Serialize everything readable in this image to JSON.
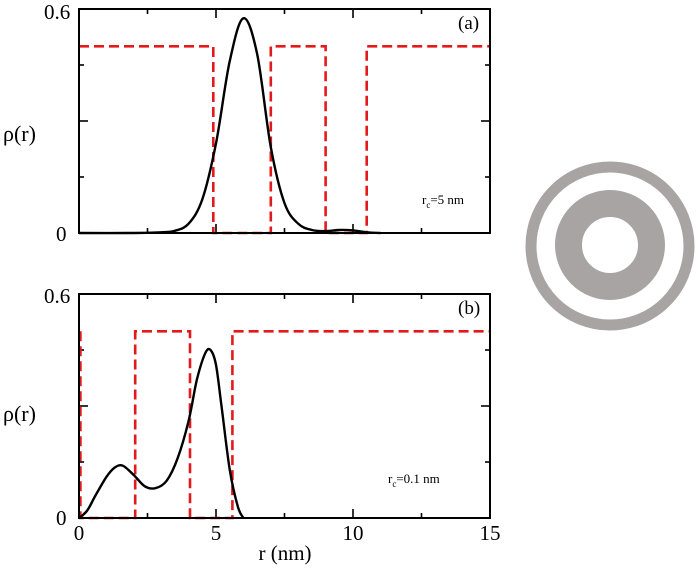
{
  "chart_data": [
    {
      "type": "line",
      "panel_label": "(a)",
      "ylabel": "ρ(r)",
      "xlabel": "",
      "xlim": [
        0,
        15
      ],
      "ylim": [
        0,
        0.6
      ],
      "x_ticks": [
        0,
        5,
        10,
        15
      ],
      "x_tick_labels": [],
      "y_tick_labels": [
        "0",
        "0.6"
      ],
      "annotation": {
        "main": "r",
        "sub": "c",
        "rest": "=5 nm"
      },
      "series": [
        {
          "style": "solid-black",
          "x": [
            0,
            2,
            3,
            3.5,
            4,
            4.5,
            5,
            5.5,
            6,
            6.5,
            7,
            7.5,
            8,
            8.5,
            9,
            9.5,
            10,
            10.5,
            11
          ],
          "y": [
            0,
            0,
            0.002,
            0.006,
            0.025,
            0.09,
            0.24,
            0.46,
            0.575,
            0.48,
            0.23,
            0.08,
            0.025,
            0.008,
            0.005,
            0.008,
            0.007,
            0.002,
            0
          ]
        },
        {
          "style": "dashed-red",
          "x": [
            0,
            4.9,
            4.9,
            7.0,
            7.0,
            9.0,
            9.0,
            10.5,
            10.5,
            15
          ],
          "y": [
            0.5,
            0.5,
            0,
            0,
            0.5,
            0.5,
            0,
            0,
            0.5,
            0.5
          ]
        }
      ]
    },
    {
      "type": "line",
      "panel_label": "(b)",
      "ylabel": "ρ(r)",
      "xlabel": "r (nm)",
      "xlim": [
        0,
        15
      ],
      "ylim": [
        0,
        0.6
      ],
      "x_ticks": [
        0,
        5,
        10,
        15
      ],
      "x_tick_labels": [
        "0",
        "5",
        "10",
        "15"
      ],
      "y_tick_labels": [
        "0",
        "0.6"
      ],
      "annotation": {
        "main": "r",
        "sub": "c",
        "rest": "=0.1 nm"
      },
      "series": [
        {
          "style": "solid-black",
          "x": [
            0,
            0.3,
            0.6,
            1.0,
            1.3,
            1.6,
            2.0,
            2.4,
            2.8,
            3.2,
            3.6,
            4.0,
            4.3,
            4.6,
            4.8,
            5.0,
            5.2,
            5.5,
            5.8,
            6.0
          ],
          "y": [
            0,
            0.02,
            0.06,
            0.11,
            0.135,
            0.14,
            0.115,
            0.085,
            0.08,
            0.1,
            0.16,
            0.26,
            0.37,
            0.44,
            0.45,
            0.41,
            0.3,
            0.13,
            0.03,
            0
          ]
        },
        {
          "style": "dashed-red",
          "x": [
            0.05,
            0.05,
            0.05,
            2.05,
            2.05,
            4.05,
            4.05,
            5.6,
            5.6,
            15
          ],
          "y": [
            0.5,
            0,
            0,
            0,
            0.5,
            0.5,
            0,
            0,
            0.5,
            0.5
          ]
        }
      ]
    }
  ],
  "inset": {
    "ring_color": "#a9a4a4",
    "description_icon": "concentric-rings-icon"
  }
}
